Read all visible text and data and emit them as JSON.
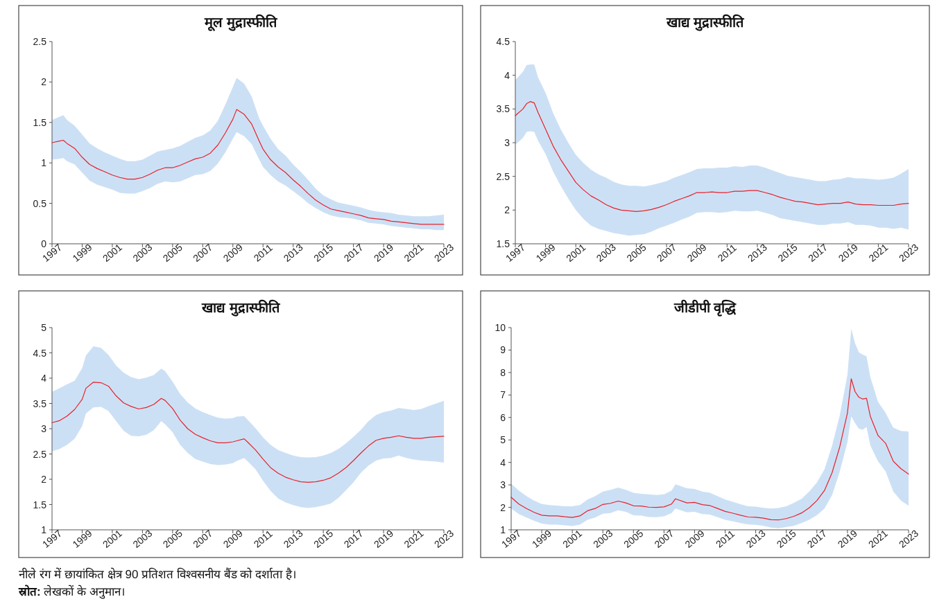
{
  "chart_data": [
    {
      "type": "line",
      "title": "मूल मुद्रास्फीति",
      "xlim": [
        1997,
        2023
      ],
      "ylim": [
        0,
        2.5
      ],
      "xticks": [
        1997,
        1999,
        2001,
        2003,
        2005,
        2007,
        2009,
        2011,
        2013,
        2015,
        2017,
        2019,
        2021,
        2023
      ],
      "yticks": [
        0,
        0.5,
        1,
        1.5,
        2,
        2.5
      ],
      "series": [
        {
          "color": "#e8202a",
          "x": [
            1997,
            1997.5,
            1997.75,
            1998,
            1998.5,
            1999,
            1999.5,
            2000,
            2000.5,
            2001,
            2001.5,
            2002,
            2002.5,
            2003,
            2003.5,
            2004,
            2004.5,
            2005,
            2005.5,
            2006,
            2006.5,
            2007,
            2007.5,
            2008,
            2008.5,
            2009,
            2009.25,
            2009.75,
            2010.25,
            2010.75,
            2011,
            2011.5,
            2012,
            2012.5,
            2013,
            2013.5,
            2014,
            2014.5,
            2015,
            2015.5,
            2016,
            2016.5,
            2017,
            2017.5,
            2018,
            2018.5,
            2019,
            2019.5,
            2020,
            2020.5,
            2021,
            2021.5,
            2022,
            2022.5,
            2023
          ],
          "values": [
            1.25,
            1.27,
            1.28,
            1.24,
            1.18,
            1.07,
            0.98,
            0.93,
            0.89,
            0.85,
            0.82,
            0.8,
            0.8,
            0.82,
            0.86,
            0.91,
            0.94,
            0.94,
            0.97,
            1.01,
            1.05,
            1.07,
            1.12,
            1.22,
            1.37,
            1.54,
            1.66,
            1.6,
            1.48,
            1.27,
            1.17,
            1.04,
            0.95,
            0.88,
            0.79,
            0.71,
            0.62,
            0.54,
            0.48,
            0.43,
            0.41,
            0.39,
            0.37,
            0.35,
            0.32,
            0.31,
            0.3,
            0.28,
            0.27,
            0.26,
            0.25,
            0.24,
            0.24,
            0.24,
            0.24
          ],
          "lower": [
            1.04,
            1.05,
            1.06,
            1.02,
            0.98,
            0.88,
            0.78,
            0.73,
            0.7,
            0.67,
            0.63,
            0.62,
            0.62,
            0.65,
            0.69,
            0.74,
            0.77,
            0.76,
            0.77,
            0.81,
            0.85,
            0.86,
            0.9,
            0.99,
            1.13,
            1.3,
            1.38,
            1.33,
            1.23,
            1.04,
            0.95,
            0.85,
            0.77,
            0.72,
            0.65,
            0.58,
            0.5,
            0.44,
            0.39,
            0.35,
            0.33,
            0.32,
            0.31,
            0.29,
            0.26,
            0.25,
            0.24,
            0.22,
            0.21,
            0.2,
            0.19,
            0.18,
            0.18,
            0.17,
            0.17
          ],
          "upper": [
            1.53,
            1.57,
            1.59,
            1.53,
            1.46,
            1.35,
            1.24,
            1.18,
            1.13,
            1.09,
            1.05,
            1.02,
            1.02,
            1.04,
            1.09,
            1.14,
            1.16,
            1.18,
            1.21,
            1.26,
            1.31,
            1.34,
            1.4,
            1.52,
            1.72,
            1.94,
            2.05,
            1.98,
            1.82,
            1.55,
            1.46,
            1.3,
            1.17,
            1.09,
            0.98,
            0.89,
            0.79,
            0.68,
            0.6,
            0.55,
            0.51,
            0.49,
            0.47,
            0.45,
            0.42,
            0.4,
            0.39,
            0.38,
            0.36,
            0.35,
            0.34,
            0.34,
            0.34,
            0.35,
            0.36
          ]
        }
      ]
    },
    {
      "type": "line",
      "title": "खाद्य मुद्रास्फीति",
      "xlim": [
        1997,
        2023
      ],
      "ylim": [
        1.5,
        4.5
      ],
      "xticks": [
        1997,
        1999,
        2001,
        2003,
        2005,
        2007,
        2009,
        2011,
        2013,
        2015,
        2017,
        2019,
        2021,
        2023
      ],
      "yticks": [
        1.5,
        2,
        2.5,
        3,
        3.5,
        4,
        4.5
      ],
      "series": [
        {
          "color": "#e8202a",
          "x": [
            1997,
            1997.5,
            1997.75,
            1998,
            1998.25,
            1998.5,
            1999,
            1999.5,
            2000,
            2000.5,
            2001,
            2001.5,
            2002,
            2002.5,
            2003,
            2003.5,
            2004,
            2004.5,
            2005,
            2005.5,
            2006,
            2006.5,
            2007,
            2007.5,
            2008,
            2008.5,
            2009,
            2009.5,
            2010,
            2010.5,
            2011,
            2011.5,
            2012,
            2012.5,
            2013,
            2013.5,
            2014,
            2014.5,
            2015,
            2015.5,
            2016,
            2016.5,
            2017,
            2017.5,
            2018,
            2018.5,
            2019,
            2019.5,
            2020,
            2020.5,
            2021,
            2021.5,
            2022,
            2022.5,
            2023
          ],
          "values": [
            3.4,
            3.5,
            3.58,
            3.61,
            3.59,
            3.45,
            3.2,
            2.95,
            2.75,
            2.58,
            2.41,
            2.3,
            2.21,
            2.15,
            2.08,
            2.03,
            2.0,
            1.99,
            1.98,
            1.99,
            2.01,
            2.04,
            2.08,
            2.13,
            2.17,
            2.21,
            2.26,
            2.26,
            2.27,
            2.26,
            2.26,
            2.28,
            2.28,
            2.29,
            2.29,
            2.26,
            2.23,
            2.19,
            2.16,
            2.13,
            2.12,
            2.1,
            2.08,
            2.09,
            2.1,
            2.1,
            2.12,
            2.09,
            2.08,
            2.08,
            2.07,
            2.07,
            2.07,
            2.09,
            2.1
          ],
          "lower": [
            2.97,
            3.07,
            3.16,
            3.17,
            3.16,
            3.03,
            2.83,
            2.57,
            2.36,
            2.17,
            2.0,
            1.87,
            1.77,
            1.72,
            1.69,
            1.66,
            1.64,
            1.62,
            1.63,
            1.64,
            1.68,
            1.73,
            1.77,
            1.81,
            1.86,
            1.9,
            1.96,
            1.97,
            1.97,
            1.96,
            1.97,
            1.99,
            1.98,
            1.98,
            1.99,
            1.96,
            1.93,
            1.88,
            1.86,
            1.84,
            1.82,
            1.8,
            1.78,
            1.78,
            1.8,
            1.8,
            1.82,
            1.78,
            1.78,
            1.77,
            1.74,
            1.74,
            1.72,
            1.74,
            1.71
          ],
          "upper": [
            3.93,
            4.05,
            4.15,
            4.16,
            4.16,
            3.97,
            3.74,
            3.44,
            3.2,
            3.0,
            2.82,
            2.7,
            2.6,
            2.53,
            2.48,
            2.42,
            2.38,
            2.36,
            2.36,
            2.35,
            2.37,
            2.4,
            2.43,
            2.48,
            2.52,
            2.56,
            2.61,
            2.62,
            2.62,
            2.63,
            2.63,
            2.65,
            2.64,
            2.66,
            2.66,
            2.63,
            2.59,
            2.55,
            2.51,
            2.49,
            2.47,
            2.45,
            2.43,
            2.43,
            2.45,
            2.46,
            2.49,
            2.47,
            2.47,
            2.46,
            2.45,
            2.46,
            2.48,
            2.54,
            2.61
          ]
        }
      ]
    },
    {
      "type": "line",
      "title": "खाद्य मुद्रास्फीति",
      "xlim": [
        1997,
        2023
      ],
      "ylim": [
        1,
        5
      ],
      "xticks": [
        1997,
        1999,
        2001,
        2003,
        2005,
        2007,
        2009,
        2011,
        2013,
        2015,
        2017,
        2019,
        2021,
        2023
      ],
      "yticks": [
        1,
        1.5,
        2,
        2.5,
        3,
        3.5,
        4,
        4.5,
        5
      ],
      "series": [
        {
          "color": "#e8202a",
          "x": [
            1997,
            1997.5,
            1998,
            1998.5,
            1999,
            1999.25,
            1999.75,
            2000.25,
            2000.75,
            2001.25,
            2001.75,
            2002.25,
            2002.75,
            2003.25,
            2003.75,
            2004.25,
            2004.5,
            2005,
            2005.5,
            2006,
            2006.5,
            2007,
            2007.5,
            2008,
            2008.5,
            2009,
            2009.25,
            2009.75,
            2010,
            2010.5,
            2011,
            2011.5,
            2012,
            2012.5,
            2013,
            2013.5,
            2014,
            2014.5,
            2015,
            2015.5,
            2016,
            2016.5,
            2017,
            2017.5,
            2018,
            2018.5,
            2019,
            2019.5,
            2020,
            2020.5,
            2021,
            2021.5,
            2022,
            2022.5,
            2023
          ],
          "values": [
            3.12,
            3.16,
            3.25,
            3.38,
            3.58,
            3.8,
            3.92,
            3.91,
            3.84,
            3.65,
            3.51,
            3.44,
            3.39,
            3.42,
            3.48,
            3.6,
            3.56,
            3.4,
            3.17,
            3.0,
            2.89,
            2.82,
            2.76,
            2.72,
            2.72,
            2.74,
            2.76,
            2.8,
            2.73,
            2.58,
            2.4,
            2.23,
            2.12,
            2.04,
            1.99,
            1.95,
            1.94,
            1.95,
            1.98,
            2.03,
            2.12,
            2.23,
            2.37,
            2.52,
            2.66,
            2.77,
            2.81,
            2.83,
            2.86,
            2.83,
            2.81,
            2.81,
            2.83,
            2.84,
            2.85
          ],
          "lower": [
            2.55,
            2.6,
            2.68,
            2.8,
            3.05,
            3.3,
            3.42,
            3.43,
            3.35,
            3.15,
            2.96,
            2.86,
            2.85,
            2.88,
            2.97,
            3.15,
            3.09,
            2.93,
            2.68,
            2.52,
            2.4,
            2.35,
            2.3,
            2.28,
            2.29,
            2.32,
            2.36,
            2.42,
            2.35,
            2.2,
            1.97,
            1.77,
            1.62,
            1.54,
            1.49,
            1.45,
            1.43,
            1.45,
            1.48,
            1.52,
            1.63,
            1.78,
            1.94,
            2.13,
            2.27,
            2.37,
            2.41,
            2.42,
            2.47,
            2.42,
            2.39,
            2.37,
            2.36,
            2.35,
            2.33
          ],
          "upper": [
            3.73,
            3.8,
            3.88,
            3.95,
            4.2,
            4.45,
            4.63,
            4.6,
            4.46,
            4.25,
            4.11,
            4.02,
            3.98,
            4.01,
            4.06,
            4.19,
            4.14,
            3.93,
            3.69,
            3.52,
            3.4,
            3.33,
            3.27,
            3.22,
            3.2,
            3.21,
            3.24,
            3.25,
            3.17,
            3.01,
            2.83,
            2.68,
            2.58,
            2.52,
            2.47,
            2.44,
            2.43,
            2.44,
            2.47,
            2.52,
            2.6,
            2.71,
            2.84,
            2.98,
            3.15,
            3.27,
            3.33,
            3.36,
            3.41,
            3.39,
            3.37,
            3.39,
            3.45,
            3.5,
            3.55
          ]
        }
      ]
    },
    {
      "type": "line",
      "title": "जीडीपी वृद्धि",
      "xlim": [
        1997,
        2023
      ],
      "ylim": [
        1,
        10
      ],
      "xticks": [
        1997,
        1999,
        2001,
        2003,
        2005,
        2007,
        2009,
        2011,
        2013,
        2015,
        2017,
        2019,
        2021,
        2023
      ],
      "yticks": [
        1,
        2,
        3,
        4,
        5,
        6,
        7,
        8,
        9,
        10
      ],
      "annotations": [
        "नीले रंग में छायांकित क्षेत्र 90 प्रतिशत विश्वसनीय बैंड को दर्शाता है।",
        "स्रोत: लेखकों के अनुमान।"
      ],
      "series": [
        {
          "color": "#e8202a",
          "x": [
            1997,
            1997.5,
            1998,
            1998.5,
            1999,
            1999.5,
            2000,
            2000.5,
            2001,
            2001.5,
            2002,
            2002.5,
            2003,
            2003.5,
            2004,
            2004.5,
            2005,
            2005.5,
            2006,
            2006.5,
            2007,
            2007.5,
            2007.75,
            2008.5,
            2009,
            2009.5,
            2010,
            2010.5,
            2011,
            2011.5,
            2012,
            2012.5,
            2013,
            2013.5,
            2014,
            2014.5,
            2015,
            2015.5,
            2016,
            2016.5,
            2017,
            2017.5,
            2018,
            2018.5,
            2019,
            2019.25,
            2019.5,
            2019.75,
            2020,
            2020.25,
            2020.5,
            2021,
            2021.5,
            2022,
            2022.5,
            2023
          ],
          "values": [
            2.45,
            2.15,
            1.95,
            1.78,
            1.65,
            1.62,
            1.62,
            1.58,
            1.55,
            1.62,
            1.85,
            1.95,
            2.13,
            2.18,
            2.28,
            2.2,
            2.07,
            2.06,
            2.01,
            2.0,
            2.02,
            2.15,
            2.38,
            2.2,
            2.22,
            2.12,
            2.08,
            1.95,
            1.82,
            1.74,
            1.65,
            1.57,
            1.56,
            1.52,
            1.45,
            1.44,
            1.5,
            1.6,
            1.75,
            1.98,
            2.3,
            2.75,
            3.55,
            4.7,
            6.2,
            7.72,
            7.15,
            6.9,
            6.82,
            6.85,
            6.05,
            5.2,
            4.85,
            4.05,
            3.72,
            3.48
          ],
          "lower": [
            1.95,
            1.7,
            1.55,
            1.4,
            1.28,
            1.23,
            1.23,
            1.2,
            1.17,
            1.23,
            1.45,
            1.55,
            1.72,
            1.75,
            1.87,
            1.8,
            1.65,
            1.63,
            1.57,
            1.56,
            1.6,
            1.75,
            1.95,
            1.78,
            1.8,
            1.7,
            1.68,
            1.56,
            1.45,
            1.38,
            1.3,
            1.24,
            1.22,
            1.18,
            1.1,
            1.07,
            1.12,
            1.18,
            1.3,
            1.45,
            1.65,
            1.95,
            2.55,
            3.6,
            4.9,
            6.05,
            5.75,
            5.5,
            5.45,
            5.58,
            4.75,
            4.05,
            3.6,
            2.7,
            2.3,
            2.07
          ],
          "upper": [
            3.05,
            2.75,
            2.5,
            2.3,
            2.15,
            2.1,
            2.08,
            2.05,
            2.05,
            2.1,
            2.35,
            2.5,
            2.7,
            2.78,
            2.88,
            2.78,
            2.65,
            2.6,
            2.58,
            2.55,
            2.58,
            2.75,
            3.03,
            2.85,
            2.82,
            2.7,
            2.65,
            2.5,
            2.35,
            2.25,
            2.14,
            2.05,
            2.03,
            1.98,
            1.95,
            1.97,
            2.05,
            2.2,
            2.38,
            2.7,
            3.1,
            3.7,
            4.75,
            6.1,
            7.9,
            9.95,
            9.3,
            8.9,
            8.8,
            8.72,
            7.8,
            6.7,
            6.2,
            5.55,
            5.4,
            5.38
          ]
        }
      ]
    }
  ]
}
